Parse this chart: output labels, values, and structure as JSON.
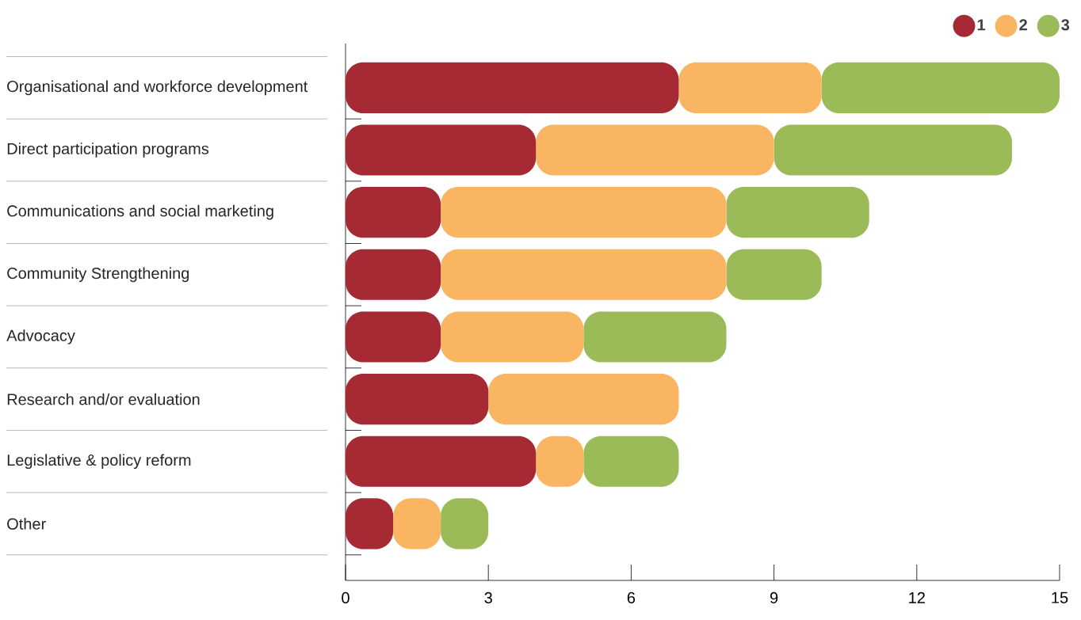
{
  "chart_data": {
    "type": "bar",
    "orientation": "horizontal",
    "stacked": true,
    "categories": [
      "Organisational and workforce development",
      "Direct participation programs",
      "Communications and social marketing",
      "Community Strengthening",
      "Advocacy",
      "Research and/or evaluation",
      "Legislative & policy reform",
      "Other"
    ],
    "series": [
      {
        "name": "1",
        "color": "#a52a33",
        "values": [
          7,
          4,
          2,
          2,
          2,
          3,
          4,
          1
        ]
      },
      {
        "name": "2",
        "color": "#f9b562",
        "values": [
          3,
          5,
          6,
          6,
          3,
          4,
          1,
          1
        ]
      },
      {
        "name": "3",
        "color": "#9bbb59",
        "values": [
          5,
          5,
          3,
          2,
          3,
          null,
          2,
          1
        ]
      }
    ],
    "xlim": [
      0,
      15
    ],
    "xticks": [
      0,
      3,
      6,
      9,
      12,
      15
    ],
    "legend": "top right"
  }
}
